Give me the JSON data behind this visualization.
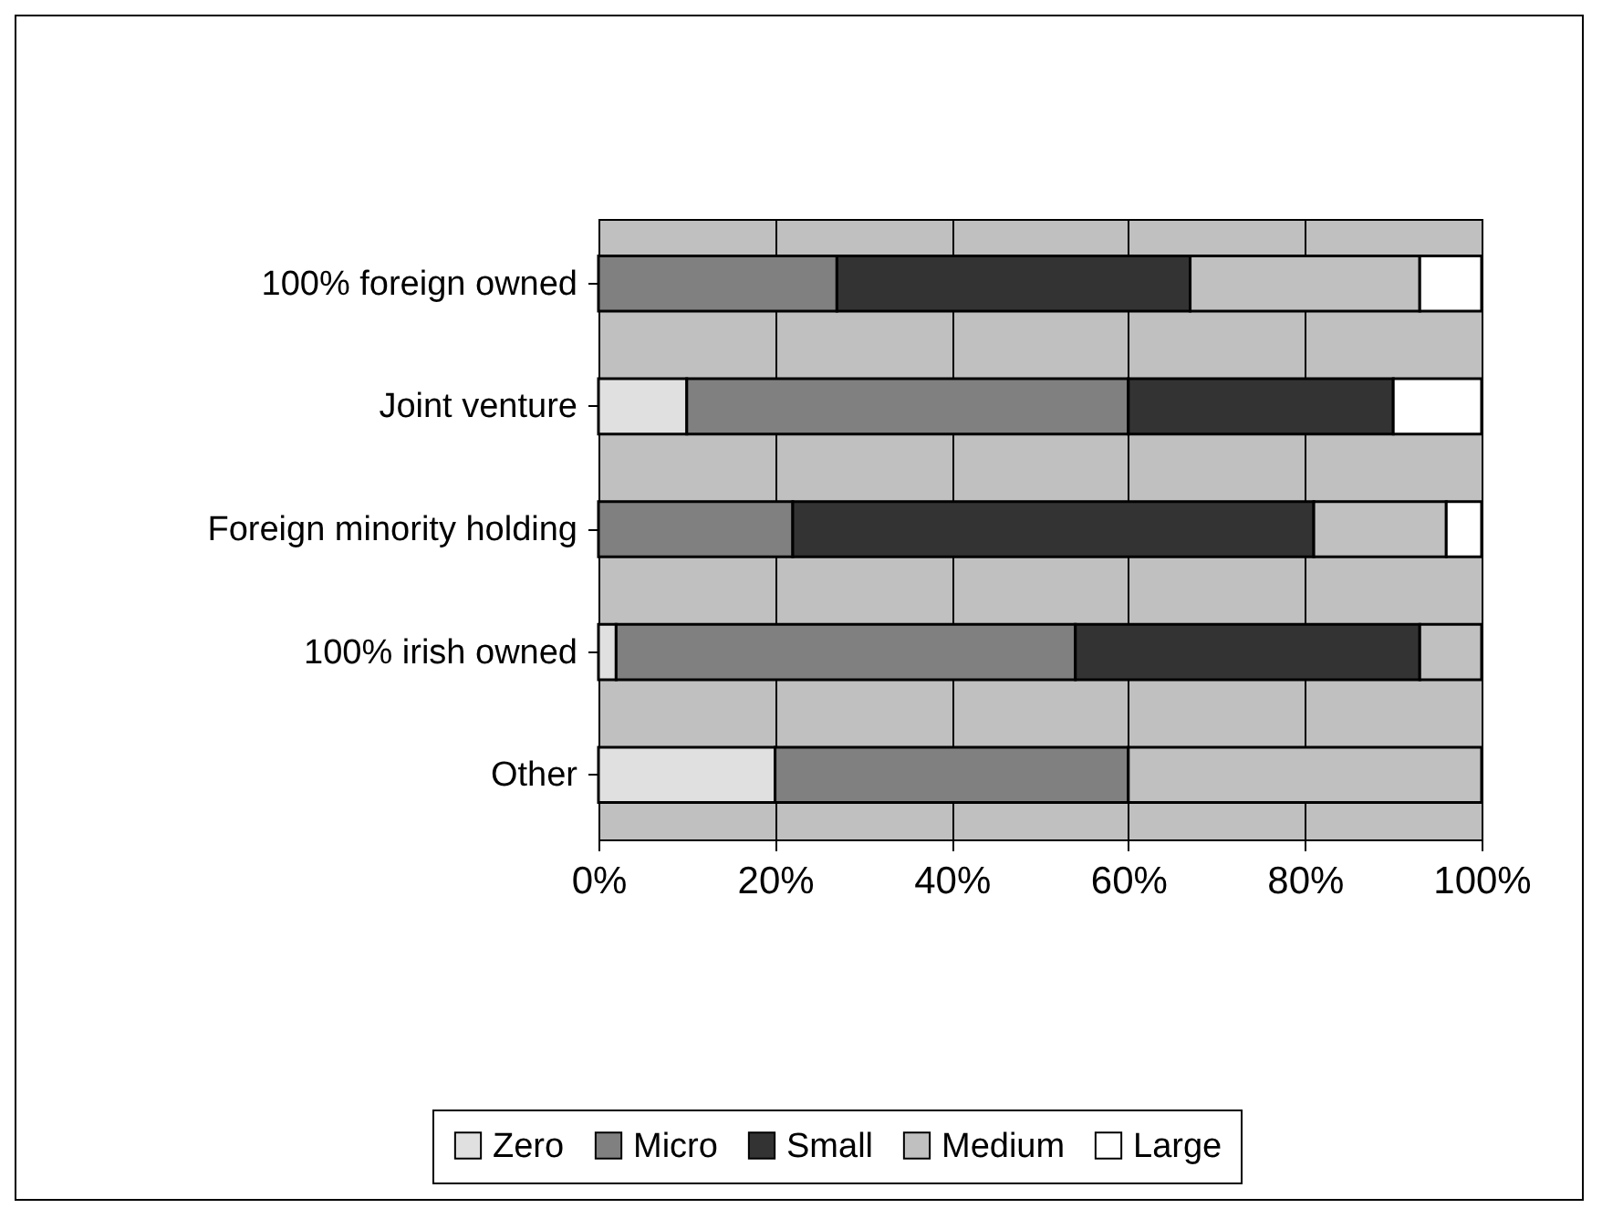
{
  "chart_data": {
    "type": "bar",
    "orientation": "horizontal",
    "stacked": true,
    "categories": [
      "100% foreign owned",
      "Joint venture",
      "Foreign minority holding",
      "100% irish owned",
      "Other"
    ],
    "series": [
      {
        "name": "Zero",
        "color": "#e0e0e0",
        "values": [
          null,
          10,
          null,
          2,
          20
        ]
      },
      {
        "name": "Micro",
        "color": "#808080",
        "values": [
          27,
          50,
          22,
          52,
          40
        ]
      },
      {
        "name": "Small",
        "color": "#333333",
        "values": [
          40,
          30,
          59,
          39,
          null
        ]
      },
      {
        "name": "Medium",
        "color": "#c0c0c0",
        "values": [
          26,
          null,
          15,
          7,
          40
        ]
      },
      {
        "name": "Large",
        "color": "#ffffff",
        "values": [
          7,
          10,
          4,
          null,
          null
        ]
      }
    ],
    "xlim": [
      0,
      100
    ],
    "xticks": [
      {
        "value": 0,
        "label": "0%"
      },
      {
        "value": 20,
        "label": "20%"
      },
      {
        "value": 40,
        "label": "40%"
      },
      {
        "value": 60,
        "label": "60%"
      },
      {
        "value": 80,
        "label": "80%"
      },
      {
        "value": 100,
        "label": "100%"
      }
    ],
    "grid": "x",
    "legend": "bottom"
  }
}
